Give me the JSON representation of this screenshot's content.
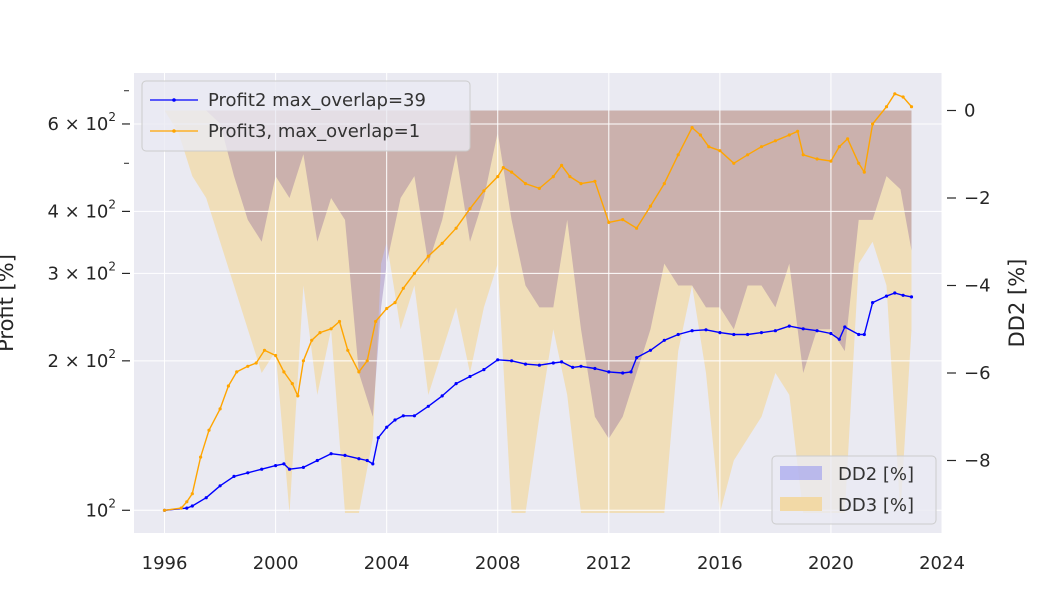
{
  "chart_data": {
    "type": "line",
    "title": "",
    "xlabel": "",
    "ylabel": "Profit [%]",
    "y2label": "DD2 [%]",
    "x_ticks": [
      "1996",
      "2000",
      "2004",
      "2008",
      "2012",
      "2016",
      "2020",
      "2024"
    ],
    "xlim": [
      1994.9,
      2024
    ],
    "y_scale": "log",
    "ylim": [
      90,
      760
    ],
    "y_major_ticks": [
      {
        "value": 100,
        "base": "10",
        "exp": "2"
      },
      {
        "value": 200,
        "base": "2 × 10",
        "exp": "2"
      },
      {
        "value": 300,
        "base": "3 × 10",
        "exp": "2"
      },
      {
        "value": 400,
        "base": "4 × 10",
        "exp": "2"
      },
      {
        "value": 600,
        "base": "6 × 10",
        "exp": "2"
      }
    ],
    "y_minor_ticks": [
      500,
      700,
      800
    ],
    "y2lim": [
      -9.2,
      0.4
    ],
    "y2_ticks": [
      {
        "value": 0,
        "label": "0"
      },
      {
        "value": -2,
        "label": "−2"
      },
      {
        "value": -4,
        "label": "−4"
      },
      {
        "value": -6,
        "label": "−6"
      },
      {
        "value": -8,
        "label": "−8"
      }
    ],
    "grid": true,
    "legend_top": {
      "placement": "top-left",
      "entries": [
        {
          "label": "Profit2 max_overlap=39",
          "color": "#0000ff"
        },
        {
          "label": "Profit3, max_overlap=1",
          "color": "#ffa500"
        }
      ]
    },
    "legend_bottom": {
      "placement": "bottom-right",
      "entries": [
        {
          "label": "DD2 [%]",
          "color": "#9999ee"
        },
        {
          "label": "DD3 [%]",
          "color": "#f2d9a6"
        }
      ]
    },
    "series": [
      {
        "name": "Profit2 max_overlap=39",
        "axis": "left",
        "color": "#0000ff",
        "x": [
          1996.0,
          1996.8,
          1997.0,
          1997.5,
          1998.0,
          1998.5,
          1999.0,
          1999.5,
          2000.0,
          2000.3,
          2000.5,
          2001.0,
          2001.5,
          2002.0,
          2002.5,
          2003.0,
          2003.3,
          2003.5,
          2003.7,
          2004.0,
          2004.3,
          2004.6,
          2005.0,
          2005.5,
          2006.0,
          2006.5,
          2007.0,
          2007.5,
          2008.0,
          2008.5,
          2009.0,
          2009.5,
          2010.0,
          2010.3,
          2010.7,
          2011.0,
          2011.5,
          2012.0,
          2012.5,
          2012.8,
          2013.0,
          2013.5,
          2014.0,
          2014.5,
          2015.0,
          2015.5,
          2016.0,
          2016.5,
          2017.0,
          2017.5,
          2018.0,
          2018.5,
          2019.0,
          2019.5,
          2020.0,
          2020.3,
          2020.5,
          2021.0,
          2021.2,
          2021.5,
          2022.0,
          2022.3,
          2022.6,
          2022.9
        ],
        "values": [
          100,
          101,
          102,
          106,
          112,
          117,
          119,
          121,
          123,
          124,
          121,
          122,
          126,
          130,
          129,
          127,
          126,
          124,
          140,
          147,
          152,
          155,
          155,
          162,
          170,
          180,
          186,
          192,
          201,
          200,
          197,
          196,
          198,
          199,
          194,
          195,
          193,
          190,
          189,
          190,
          203,
          210,
          220,
          226,
          230,
          231,
          228,
          226,
          226,
          228,
          230,
          235,
          232,
          230,
          227,
          221,
          234,
          226,
          226,
          262,
          270,
          274,
          271,
          269
        ]
      },
      {
        "name": "Profit3, max_overlap=1",
        "axis": "left",
        "color": "#ffa500",
        "x": [
          1996.0,
          1996.6,
          1996.8,
          1997.0,
          1997.3,
          1997.6,
          1998.0,
          1998.3,
          1998.6,
          1999.0,
          1999.3,
          1999.6,
          2000.0,
          2000.3,
          2000.6,
          2000.8,
          2001.0,
          2001.3,
          2001.6,
          2002.0,
          2002.3,
          2002.6,
          2003.0,
          2003.3,
          2003.6,
          2004.0,
          2004.3,
          2004.6,
          2005.0,
          2005.5,
          2006.0,
          2006.5,
          2007.0,
          2007.5,
          2008.0,
          2008.2,
          2008.5,
          2009.0,
          2009.5,
          2010.0,
          2010.3,
          2010.6,
          2011.0,
          2011.5,
          2012.0,
          2012.5,
          2013.0,
          2013.5,
          2014.0,
          2014.5,
          2015.0,
          2015.3,
          2015.6,
          2016.0,
          2016.5,
          2017.0,
          2017.5,
          2018.0,
          2018.5,
          2018.8,
          2019.0,
          2019.5,
          2020.0,
          2020.3,
          2020.6,
          2021.0,
          2021.2,
          2021.5,
          2022.0,
          2022.3,
          2022.6,
          2022.9
        ],
        "values": [
          100,
          101,
          104,
          108,
          128,
          145,
          160,
          178,
          190,
          195,
          198,
          210,
          205,
          190,
          180,
          170,
          200,
          220,
          228,
          232,
          240,
          210,
          190,
          200,
          240,
          255,
          262,
          280,
          300,
          325,
          345,
          370,
          405,
          440,
          470,
          490,
          480,
          455,
          445,
          470,
          495,
          470,
          455,
          460,
          380,
          385,
          370,
          410,
          455,
          520,
          590,
          570,
          540,
          530,
          500,
          520,
          540,
          555,
          570,
          580,
          520,
          510,
          505,
          540,
          560,
          500,
          480,
          600,
          650,
          690,
          680,
          650
        ]
      },
      {
        "name": "DD2 [%]",
        "axis": "right",
        "type": "area",
        "color": "#9999ee",
        "x": [
          1996.0,
          1996.5,
          1997.0,
          1997.5,
          1998.0,
          1998.5,
          1999.0,
          1999.5,
          2000.0,
          2000.5,
          2001.0,
          2001.5,
          2002.0,
          2002.5,
          2003.0,
          2003.5,
          2003.8,
          2004.0,
          2004.5,
          2005.0,
          2005.5,
          2006.0,
          2006.5,
          2007.0,
          2007.5,
          2008.0,
          2008.5,
          2009.0,
          2009.5,
          2010.0,
          2010.5,
          2011.0,
          2011.5,
          2012.0,
          2012.5,
          2013.0,
          2013.5,
          2014.0,
          2014.5,
          2015.0,
          2015.5,
          2016.0,
          2016.5,
          2017.0,
          2017.5,
          2018.0,
          2018.5,
          2019.0,
          2019.5,
          2020.0,
          2020.5,
          2021.0,
          2021.5,
          2022.0,
          2022.5,
          2022.9
        ],
        "values": [
          0,
          0,
          0,
          0,
          -0.3,
          -1.5,
          -2.5,
          -3.0,
          -1.5,
          -2.0,
          -1.0,
          -3.0,
          -2.0,
          -2.5,
          -6.0,
          -7.0,
          -4.5,
          -3.5,
          -2.0,
          -1.5,
          -3.5,
          -2.5,
          -1.0,
          -3.0,
          -2.0,
          -0.5,
          -2.5,
          -4.0,
          -4.5,
          -4.5,
          -2.5,
          -5.0,
          -7.0,
          -7.5,
          -7.0,
          -6.0,
          -5.0,
          -3.5,
          -4.0,
          -4.0,
          -4.5,
          -4.5,
          -5.0,
          -4.0,
          -4.0,
          -4.5,
          -3.5,
          -6.0,
          -5.0,
          -5.0,
          -5.5,
          -2.5,
          -2.5,
          -1.5,
          -1.8,
          -3.2
        ]
      },
      {
        "name": "DD3 [%]",
        "axis": "right",
        "type": "area",
        "color": "#f2d9a6",
        "x": [
          1996.0,
          1996.5,
          1997.0,
          1997.5,
          1998.0,
          1998.5,
          1999.0,
          1999.5,
          2000.0,
          2000.5,
          2001.0,
          2001.5,
          2002.0,
          2002.5,
          2003.0,
          2003.5,
          2003.8,
          2004.0,
          2004.5,
          2005.0,
          2005.5,
          2006.0,
          2006.5,
          2007.0,
          2007.5,
          2008.0,
          2008.5,
          2009.0,
          2009.5,
          2010.0,
          2010.5,
          2011.0,
          2011.5,
          2012.0,
          2012.5,
          2013.0,
          2013.5,
          2014.0,
          2014.5,
          2015.0,
          2015.5,
          2016.0,
          2016.5,
          2017.0,
          2017.5,
          2018.0,
          2018.5,
          2019.0,
          2019.5,
          2020.0,
          2020.5,
          2021.0,
          2021.5,
          2022.0,
          2022.5,
          2022.9
        ],
        "values": [
          0,
          -0.5,
          -1.5,
          -2.0,
          -3.0,
          -4.0,
          -5.0,
          -6.0,
          -5.5,
          -9.2,
          -4.0,
          -6.5,
          -5.0,
          -9.2,
          -9.2,
          -7.5,
          -3.5,
          -3.0,
          -5.0,
          -4.0,
          -6.5,
          -5.5,
          -4.5,
          -6.0,
          -4.5,
          -3.5,
          -9.2,
          -9.2,
          -7.0,
          -5.0,
          -6.5,
          -9.2,
          -9.2,
          -9.2,
          -9.2,
          -9.2,
          -9.2,
          -9.2,
          -5.5,
          -4.0,
          -6.0,
          -9.2,
          -8.0,
          -7.5,
          -7.0,
          -6.0,
          -6.5,
          -9.2,
          -9.2,
          -9.2,
          -9.2,
          -3.5,
          -3.0,
          -4.0,
          -9.2,
          -5.0
        ]
      }
    ]
  }
}
